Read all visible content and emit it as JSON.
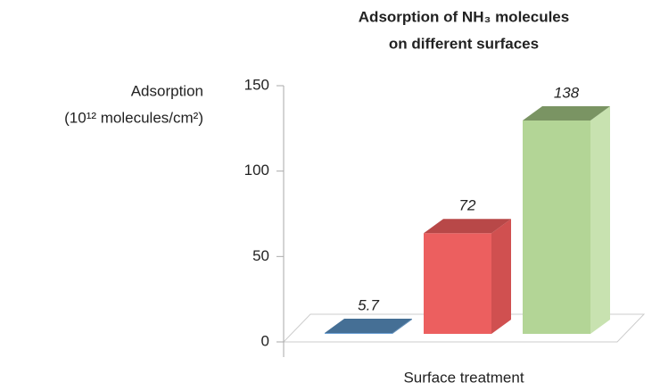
{
  "chart_data": {
    "type": "bar3d",
    "title": [
      "Adsorption of NH₃ molecules",
      "on different surfaces"
    ],
    "y_label": [
      "Adsorption",
      "(10¹² molecules/cm²)"
    ],
    "x_label": "Surface treatment",
    "categories": [
      null,
      null,
      null
    ],
    "values": [
      5.7,
      72,
      138
    ],
    "colors": [
      {
        "front": "#6a9fd4",
        "top": "#456f95",
        "side": "#5a8ab8"
      },
      {
        "front": "#ec5f5f",
        "top": "#b84848",
        "side": "#d05050"
      },
      {
        "front": "#b3d596",
        "top": "#7a9463",
        "side": "#c8e2b0"
      }
    ],
    "ylim": [
      0,
      150
    ],
    "yticks": [
      0,
      50,
      100,
      150
    ]
  }
}
